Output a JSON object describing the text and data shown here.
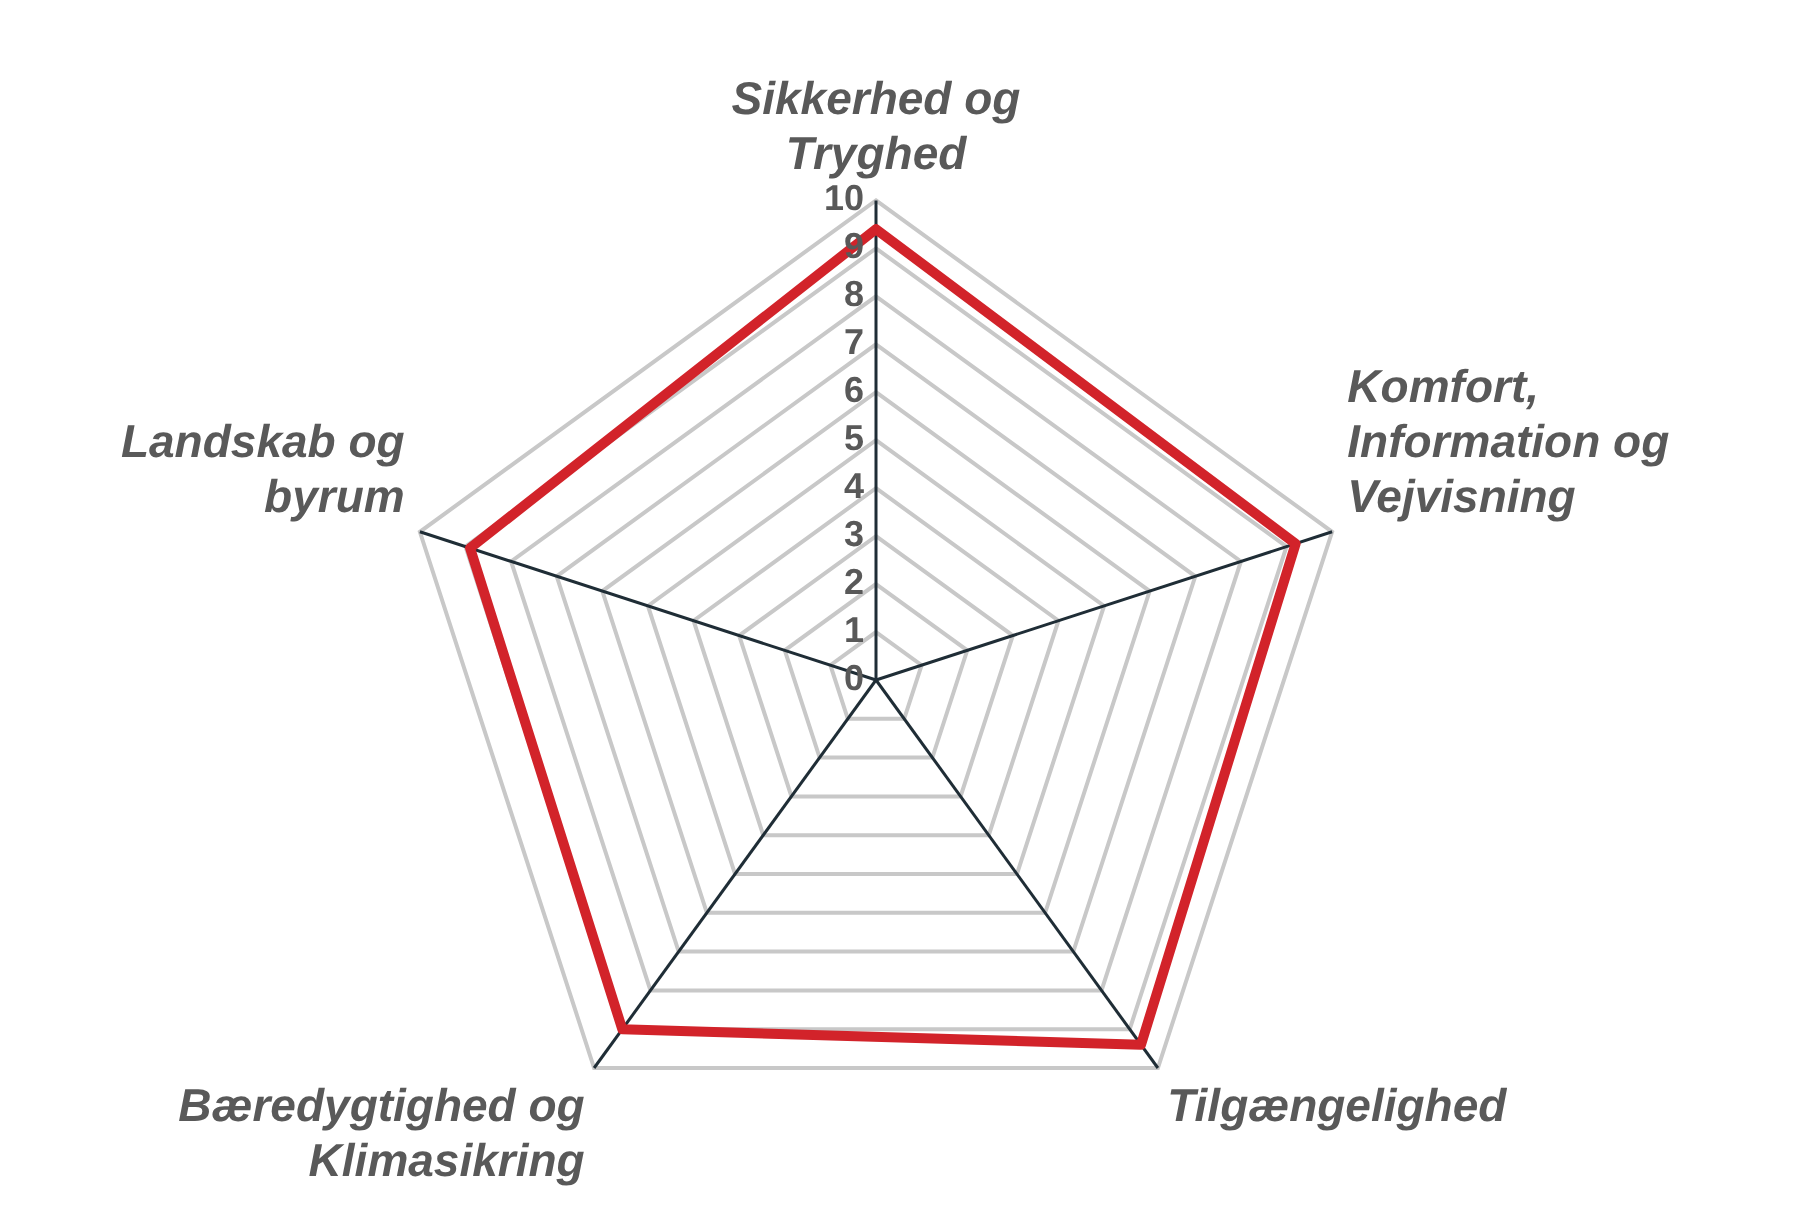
{
  "chart_data": {
    "type": "radar",
    "categories": [
      "Sikkerhed og\nTryghed",
      "Komfort,\nInformation og\nVejvisning",
      "Tilgængelighed",
      "Bæredygtighed og\nKlimasikring",
      "Landskab og\nbyrum"
    ],
    "series": [
      {
        "color": "#d2232a",
        "values": [
          9.4,
          9.2,
          9.4,
          9.0,
          8.9
        ]
      }
    ],
    "ylim": [
      0,
      10
    ],
    "yticks": [
      0,
      1,
      2,
      3,
      4,
      5,
      6,
      7,
      8,
      9,
      10
    ],
    "grid": true,
    "legend": false,
    "marker": "none",
    "line_style": "solid"
  }
}
